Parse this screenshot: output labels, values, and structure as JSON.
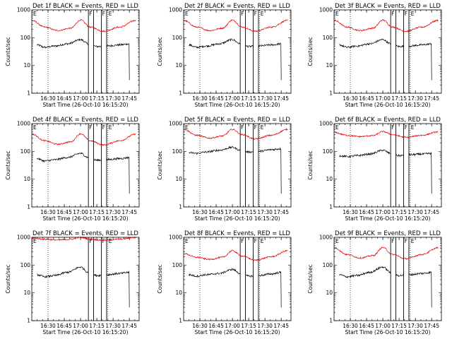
{
  "colors": {
    "events": "#000000",
    "lld": "#e00000",
    "background": "#ffffff"
  },
  "start_time_label": "Start Time (26-Oct-10 16:15:20)",
  "y_label": "Counts/sec",
  "x_ticks": [
    "16:30",
    "16:45",
    "17:00",
    "17:15",
    "17:30",
    "17:45"
  ],
  "y_ticks": [
    "1",
    "10",
    "100",
    "1000"
  ],
  "marker_labels": {
    "E": "E",
    "F": "F"
  },
  "chart_data": [
    {
      "type": "line",
      "title": "Det 1f BLACK = Events, RED = LLD",
      "xlabel": "Start Time (26-Oct-10 16:15:20)",
      "ylabel": "Counts/sec",
      "xlim": [
        16.25,
        17.9
      ],
      "ylim": [
        1,
        1000
      ],
      "yscale": "log",
      "dotted_lines": [
        16.5,
        17.42
      ],
      "solid_lines": [
        17.12,
        17.2,
        17.32,
        17.4
      ],
      "series": [
        {
          "name": "Events",
          "x": [
            16.33,
            16.45,
            16.6,
            16.8,
            17.0,
            17.12,
            17.25,
            17.4,
            17.6,
            17.75
          ],
          "y": [
            55,
            45,
            50,
            60,
            85,
            60,
            48,
            50,
            55,
            60
          ]
        },
        {
          "name": "LLD",
          "x": [
            16.25,
            16.45,
            16.65,
            16.85,
            17.0,
            17.15,
            17.35,
            17.6,
            17.85
          ],
          "y": [
            420,
            240,
            180,
            220,
            430,
            240,
            170,
            240,
            420
          ]
        }
      ]
    },
    {
      "type": "line",
      "title": "Det 2f BLACK = Events, RED = LLD",
      "xlabel": "Start Time (26-Oct-10 16:15:20)",
      "ylabel": "Counts/sec",
      "xlim": [
        16.25,
        17.9
      ],
      "ylim": [
        1,
        1000
      ],
      "yscale": "log",
      "dotted_lines": [
        16.5,
        17.42
      ],
      "solid_lines": [
        17.12,
        17.2,
        17.32,
        17.4
      ],
      "series": [
        {
          "name": "Events",
          "x": [
            16.33,
            16.45,
            16.6,
            16.8,
            17.0,
            17.12,
            17.25,
            17.4,
            17.6,
            17.75
          ],
          "y": [
            55,
            45,
            50,
            60,
            85,
            60,
            48,
            50,
            55,
            60
          ]
        },
        {
          "name": "LLD",
          "x": [
            16.25,
            16.45,
            16.65,
            16.85,
            17.0,
            17.15,
            17.35,
            17.6,
            17.85
          ],
          "y": [
            420,
            240,
            180,
            220,
            430,
            240,
            170,
            240,
            420
          ]
        }
      ]
    },
    {
      "type": "line",
      "title": "Det 3f BLACK = Events, RED = LLD",
      "xlabel": "Start Time (26-Oct-10 16:15:20)",
      "ylabel": "Counts/sec",
      "xlim": [
        16.25,
        17.9
      ],
      "ylim": [
        1,
        1000
      ],
      "yscale": "log",
      "dotted_lines": [
        16.5,
        17.42
      ],
      "solid_lines": [
        17.12,
        17.2,
        17.32,
        17.4
      ],
      "series": [
        {
          "name": "Events",
          "x": [
            16.33,
            16.45,
            16.6,
            16.8,
            17.0,
            17.12,
            17.25,
            17.4,
            17.6,
            17.75
          ],
          "y": [
            55,
            45,
            50,
            60,
            85,
            60,
            48,
            50,
            55,
            60
          ]
        },
        {
          "name": "LLD",
          "x": [
            16.25,
            16.45,
            16.65,
            16.85,
            17.0,
            17.15,
            17.35,
            17.6,
            17.85
          ],
          "y": [
            420,
            240,
            180,
            220,
            430,
            240,
            170,
            240,
            420
          ]
        }
      ]
    },
    {
      "type": "line",
      "title": "Det 4f BLACK = Events, RED = LLD",
      "xlabel": "Start Time (26-Oct-10 16:15:20)",
      "ylabel": "Counts/sec",
      "xlim": [
        16.25,
        17.9
      ],
      "ylim": [
        1,
        1000
      ],
      "yscale": "log",
      "dotted_lines": [
        16.5,
        17.42
      ],
      "solid_lines": [
        17.12,
        17.2,
        17.32,
        17.4
      ],
      "series": [
        {
          "name": "Events",
          "x": [
            16.33,
            16.45,
            16.6,
            16.8,
            17.0,
            17.12,
            17.25,
            17.4,
            17.6,
            17.75
          ],
          "y": [
            55,
            45,
            50,
            60,
            85,
            60,
            48,
            50,
            55,
            60
          ]
        },
        {
          "name": "LLD",
          "x": [
            16.25,
            16.45,
            16.65,
            16.85,
            17.0,
            17.15,
            17.35,
            17.6,
            17.85
          ],
          "y": [
            420,
            240,
            180,
            220,
            430,
            240,
            170,
            240,
            420
          ]
        }
      ]
    },
    {
      "type": "line",
      "title": "Det 5f BLACK = Events, RED = LLD",
      "xlabel": "Start Time (26-Oct-10 16:15:20)",
      "ylabel": "Counts/sec",
      "xlim": [
        16.25,
        17.9
      ],
      "ylim": [
        1,
        1000
      ],
      "yscale": "log",
      "dotted_lines": [
        16.5,
        17.42
      ],
      "solid_lines": [
        17.12,
        17.2,
        17.32,
        17.4
      ],
      "series": [
        {
          "name": "Events",
          "x": [
            16.33,
            16.45,
            16.6,
            16.8,
            17.0,
            17.12,
            17.25,
            17.4,
            17.6,
            17.75
          ],
          "y": [
            90,
            85,
            95,
            110,
            140,
            110,
            95,
            100,
            115,
            125
          ]
        },
        {
          "name": "LLD",
          "x": [
            16.25,
            16.45,
            16.65,
            16.85,
            17.0,
            17.15,
            17.35,
            17.6,
            17.85
          ],
          "y": [
            620,
            380,
            300,
            360,
            620,
            400,
            280,
            380,
            620
          ]
        }
      ]
    },
    {
      "type": "line",
      "title": "Det 6f BLACK = Events, RED = LLD",
      "xlabel": "Start Time (26-Oct-10 16:15:20)",
      "ylabel": "Counts/sec",
      "xlim": [
        16.25,
        17.9
      ],
      "ylim": [
        1,
        1000
      ],
      "yscale": "log",
      "dotted_lines": [
        16.5,
        17.42
      ],
      "solid_lines": [
        17.12,
        17.2,
        17.32,
        17.4
      ],
      "series": [
        {
          "name": "Events",
          "x": [
            16.33,
            16.45,
            16.6,
            16.8,
            17.0,
            17.12,
            17.25,
            17.4,
            17.6,
            17.75
          ],
          "y": [
            70,
            65,
            70,
            80,
            110,
            85,
            70,
            75,
            80,
            85
          ]
        },
        {
          "name": "LLD",
          "x": [
            16.25,
            16.45,
            16.65,
            16.85,
            17.0,
            17.15,
            17.35,
            17.6,
            17.85
          ],
          "y": [
            480,
            380,
            340,
            370,
            520,
            400,
            320,
            380,
            500
          ]
        }
      ]
    },
    {
      "type": "line",
      "title": "Det 7f BLACK = Events, RED = LLD",
      "xlabel": "Start Time (26-Oct-10 16:15:20)",
      "ylabel": "Counts/sec",
      "xlim": [
        16.25,
        17.9
      ],
      "ylim": [
        1,
        1000
      ],
      "yscale": "log",
      "dotted_lines": [
        16.5,
        17.42
      ],
      "solid_lines": [
        17.12,
        17.2,
        17.32,
        17.4
      ],
      "series": [
        {
          "name": "Events",
          "x": [
            16.33,
            16.45,
            16.6,
            16.8,
            17.0,
            17.12,
            17.25,
            17.4,
            17.6,
            17.75
          ],
          "y": [
            45,
            38,
            42,
            55,
            85,
            55,
            42,
            45,
            50,
            55
          ]
        },
        {
          "name": "LLD",
          "x": [
            16.25,
            16.45,
            16.65,
            16.85,
            17.0,
            17.15,
            17.35,
            17.6,
            17.85
          ],
          "y": [
            950,
            850,
            800,
            850,
            1000,
            850,
            780,
            860,
            1000
          ]
        }
      ]
    },
    {
      "type": "line",
      "title": "Det 8f BLACK = Events, RED = LLD",
      "xlabel": "Start Time (26-Oct-10 16:15:20)",
      "ylabel": "Counts/sec",
      "xlim": [
        16.25,
        17.9
      ],
      "ylim": [
        1,
        1000
      ],
      "yscale": "log",
      "dotted_lines": [
        16.5,
        17.42
      ],
      "solid_lines": [
        17.12,
        17.2,
        17.32,
        17.4
      ],
      "series": [
        {
          "name": "Events",
          "x": [
            16.33,
            16.45,
            16.6,
            16.8,
            17.0,
            17.12,
            17.25,
            17.4,
            17.6,
            17.75
          ],
          "y": [
            45,
            40,
            45,
            50,
            70,
            50,
            40,
            42,
            48,
            55
          ]
        },
        {
          "name": "LLD",
          "x": [
            16.25,
            16.45,
            16.65,
            16.85,
            17.0,
            17.15,
            17.35,
            17.6,
            17.85
          ],
          "y": [
            260,
            190,
            160,
            190,
            330,
            210,
            150,
            200,
            330
          ]
        }
      ]
    },
    {
      "type": "line",
      "title": "Det 9f BLACK = Events, RED = LLD",
      "xlabel": "Start Time (26-Oct-10 16:15:20)",
      "ylabel": "Counts/sec",
      "xlim": [
        16.25,
        17.9
      ],
      "ylim": [
        1,
        1000
      ],
      "yscale": "log",
      "dotted_lines": [
        16.5,
        17.42
      ],
      "solid_lines": [
        17.12,
        17.2,
        17.32,
        17.4
      ],
      "series": [
        {
          "name": "Events",
          "x": [
            16.33,
            16.45,
            16.6,
            16.8,
            17.0,
            17.12,
            17.25,
            17.4,
            17.6,
            17.75
          ],
          "y": [
            45,
            38,
            42,
            55,
            85,
            55,
            42,
            45,
            50,
            55
          ]
        },
        {
          "name": "LLD",
          "x": [
            16.25,
            16.45,
            16.65,
            16.85,
            17.0,
            17.15,
            17.35,
            17.6,
            17.85
          ],
          "y": [
            420,
            240,
            180,
            220,
            430,
            240,
            170,
            240,
            420
          ]
        }
      ]
    }
  ]
}
